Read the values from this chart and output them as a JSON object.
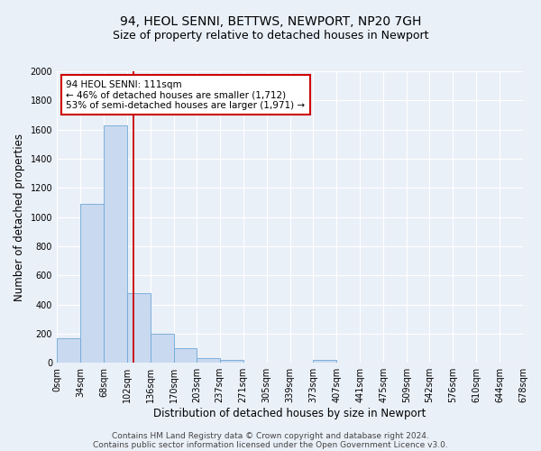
{
  "title": "94, HEOL SENNI, BETTWS, NEWPORT, NP20 7GH",
  "subtitle": "Size of property relative to detached houses in Newport",
  "xlabel": "Distribution of detached houses by size in Newport",
  "ylabel": "Number of detached properties",
  "bar_values": [
    170,
    1090,
    1630,
    480,
    200,
    100,
    35,
    20,
    0,
    0,
    0,
    20,
    0,
    0,
    0,
    0,
    0,
    0,
    0,
    0
  ],
  "bin_edges": [
    0,
    34,
    68,
    102,
    136,
    170,
    203,
    237,
    271,
    305,
    339,
    373,
    407,
    441,
    475,
    509,
    542,
    576,
    610,
    644,
    678
  ],
  "tick_labels": [
    "0sqm",
    "34sqm",
    "68sqm",
    "102sqm",
    "136sqm",
    "170sqm",
    "203sqm",
    "237sqm",
    "271sqm",
    "305sqm",
    "339sqm",
    "373sqm",
    "407sqm",
    "441sqm",
    "475sqm",
    "509sqm",
    "542sqm",
    "576sqm",
    "610sqm",
    "644sqm",
    "678sqm"
  ],
  "bar_color": "#c9d9f0",
  "bar_edge_color": "#6fa8d6",
  "vline_x": 111,
  "vline_color": "#cc0000",
  "ylim": [
    0,
    2000
  ],
  "yticks": [
    0,
    200,
    400,
    600,
    800,
    1000,
    1200,
    1400,
    1600,
    1800,
    2000
  ],
  "annotation_text": "94 HEOL SENNI: 111sqm\n← 46% of detached houses are smaller (1,712)\n53% of semi-detached houses are larger (1,971) →",
  "annotation_box_color": "#ffffff",
  "annotation_box_edge_color": "#cc0000",
  "background_color": "#eaf0f8",
  "footer_text1": "Contains HM Land Registry data © Crown copyright and database right 2024.",
  "footer_text2": "Contains public sector information licensed under the Open Government Licence v3.0.",
  "title_fontsize": 10,
  "subtitle_fontsize": 9,
  "xlabel_fontsize": 8.5,
  "ylabel_fontsize": 8.5,
  "tick_fontsize": 7,
  "footer_fontsize": 6.5
}
